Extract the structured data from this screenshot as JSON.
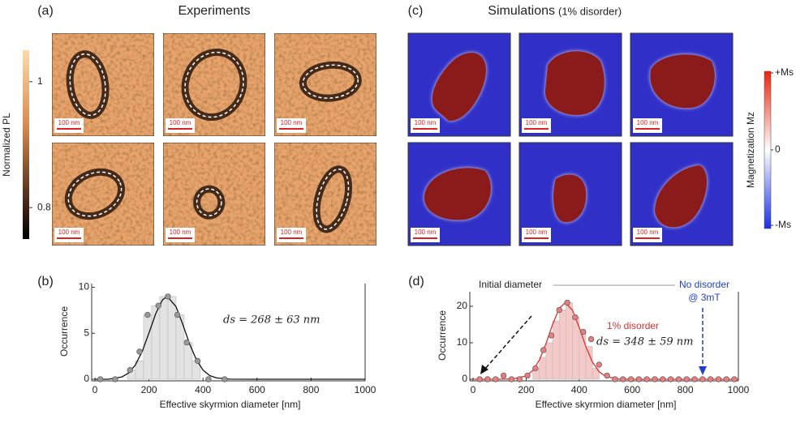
{
  "panels": {
    "a": "(a)",
    "b": "(b)",
    "c": "(c)",
    "d": "(d)"
  },
  "experiments_title": "Experiments",
  "simulations_title": "Simulations",
  "simulations_subtitle": "(1% disorder)",
  "scale_bar_label": "100 nm",
  "colorbars": [
    {
      "label": "Normalized PL",
      "lim": [
        0.75,
        1.05
      ],
      "ticks": [
        1,
        0.8
      ]
    },
    {
      "label": "Magnetization Mz",
      "lim": [
        -1,
        1
      ],
      "ticks": [
        {
          "value": 1,
          "label": "+Ms"
        },
        0,
        {
          "value": -1,
          "label": "-Ms"
        }
      ]
    }
  ],
  "chart_data": [
    {
      "type": "histogram",
      "xlabel": "Effective skyrmion diameter [nm]",
      "ylabel": "Occurrence",
      "annotation": "ds = 268 ± 63 nm",
      "xlim": [
        0,
        1000
      ],
      "ylim": [
        0,
        10.4
      ],
      "xticks": [
        0,
        200,
        400,
        600,
        800,
        1000
      ],
      "yticks": [
        0,
        5,
        10
      ],
      "bins": [
        120,
        150,
        180,
        210,
        240,
        270,
        300,
        330,
        360,
        390
      ],
      "values": [
        1,
        2,
        7,
        8,
        9,
        9,
        7,
        4,
        2
      ],
      "color": "#e3e3e3",
      "points": {
        "x": [
          20,
          75,
          130,
          165,
          195,
          235,
          270,
          305,
          340,
          380,
          420,
          480
        ],
        "y": [
          0,
          0,
          1,
          3,
          7,
          8,
          9,
          7,
          4,
          2,
          0,
          0
        ],
        "color": "#9a9a9a"
      },
      "fit": {
        "x": [
          0,
          50,
          100,
          125,
          150,
          175,
          200,
          225,
          250,
          268,
          300,
          325,
          350,
          375,
          400,
          425,
          450,
          500,
          600,
          800,
          1000
        ],
        "y": [
          0,
          0,
          0.26,
          0.68,
          1.56,
          3.03,
          5.03,
          7.13,
          8.64,
          9,
          7.91,
          5.98,
          3.86,
          2.13,
          1.0,
          0.4,
          0.14,
          0.01,
          0,
          0,
          0
        ],
        "color": "#111111"
      }
    },
    {
      "type": "histogram",
      "xlabel": "Effective skyrmion diameter [nm]",
      "ylabel": "Occurrence",
      "annotation": "ds = 348 ± 59 nm",
      "initial_label": "Initial diameter",
      "disorder_label": "1% disorder",
      "no_disorder_label": [
        "No disorder",
        "@ 3mT"
      ],
      "xlim": [
        0,
        1000
      ],
      "ylim": [
        0,
        24
      ],
      "xticks": [
        0,
        200,
        400,
        600,
        800,
        1000
      ],
      "yticks": [
        0,
        10,
        20
      ],
      "bins": [
        225,
        250,
        275,
        300,
        325,
        350,
        375,
        400,
        425,
        450,
        475
      ],
      "values": [
        3,
        6,
        10,
        16,
        19,
        21,
        17,
        13,
        9,
        3
      ],
      "color": "#f6c9c9",
      "points": {
        "x": [
          25,
          55,
          85,
          115,
          145,
          175,
          205,
          235,
          265,
          295,
          325,
          355,
          385,
          415,
          445,
          475,
          505,
          535,
          565,
          595,
          625,
          655,
          685,
          715,
          745,
          775,
          805,
          835,
          865,
          895,
          925,
          955,
          985
        ],
        "y": [
          0,
          0,
          0,
          1,
          0,
          0,
          1,
          3,
          8,
          12,
          19,
          21,
          17,
          13,
          11,
          4,
          1,
          0,
          0,
          0,
          0,
          0,
          0,
          0,
          0,
          0,
          0,
          0,
          0,
          0,
          0,
          0,
          0
        ],
        "color": "#e77f7f"
      },
      "fit": {
        "x": [
          0,
          100,
          150,
          200,
          225,
          250,
          275,
          300,
          325,
          348,
          375,
          400,
          425,
          450,
          475,
          500,
          550,
          600,
          1000
        ],
        "y": [
          0,
          0,
          0.08,
          0.9,
          2.39,
          5.28,
          9.77,
          15.08,
          19.46,
          21,
          18.91,
          14.24,
          8.96,
          4.71,
          2.07,
          0.76,
          0.06,
          0,
          0
        ],
        "color": "#e03030"
      }
    }
  ]
}
